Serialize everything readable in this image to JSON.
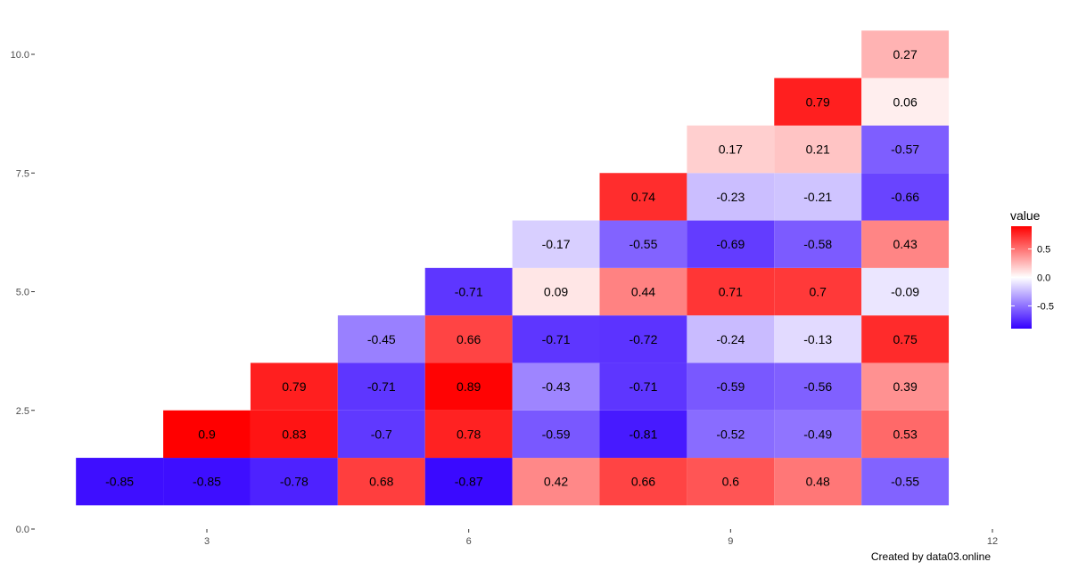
{
  "chart_data": {
    "type": "heatmap",
    "title": "",
    "xlabel": "",
    "ylabel": "",
    "x_ticks": [
      3,
      6,
      9,
      12
    ],
    "y_ticks": [
      0.0,
      2.5,
      5.0,
      7.5,
      10.0
    ],
    "y_tick_labels": [
      "0.0",
      "2.5",
      "5.0",
      "7.5",
      "10.0"
    ],
    "xlim": [
      0.5,
      12.5
    ],
    "ylim": [
      0,
      10.5
    ],
    "cells": [
      {
        "x": 2,
        "y": 1,
        "value": -0.85
      },
      {
        "x": 3,
        "y": 1,
        "value": -0.85
      },
      {
        "x": 4,
        "y": 1,
        "value": -0.78
      },
      {
        "x": 5,
        "y": 1,
        "value": 0.68
      },
      {
        "x": 6,
        "y": 1,
        "value": -0.87
      },
      {
        "x": 7,
        "y": 1,
        "value": 0.42
      },
      {
        "x": 8,
        "y": 1,
        "value": 0.66
      },
      {
        "x": 9,
        "y": 1,
        "value": 0.6
      },
      {
        "x": 10,
        "y": 1,
        "value": 0.48
      },
      {
        "x": 11,
        "y": 1,
        "value": -0.55
      },
      {
        "x": 3,
        "y": 2,
        "value": 0.9
      },
      {
        "x": 4,
        "y": 2,
        "value": 0.83
      },
      {
        "x": 5,
        "y": 2,
        "value": -0.7
      },
      {
        "x": 6,
        "y": 2,
        "value": 0.78
      },
      {
        "x": 7,
        "y": 2,
        "value": -0.59
      },
      {
        "x": 8,
        "y": 2,
        "value": -0.81
      },
      {
        "x": 9,
        "y": 2,
        "value": -0.52
      },
      {
        "x": 10,
        "y": 2,
        "value": -0.49
      },
      {
        "x": 11,
        "y": 2,
        "value": 0.53
      },
      {
        "x": 4,
        "y": 3,
        "value": 0.79
      },
      {
        "x": 5,
        "y": 3,
        "value": -0.71
      },
      {
        "x": 6,
        "y": 3,
        "value": 0.89
      },
      {
        "x": 7,
        "y": 3,
        "value": -0.43
      },
      {
        "x": 8,
        "y": 3,
        "value": -0.71
      },
      {
        "x": 9,
        "y": 3,
        "value": -0.59
      },
      {
        "x": 10,
        "y": 3,
        "value": -0.56
      },
      {
        "x": 11,
        "y": 3,
        "value": 0.39
      },
      {
        "x": 5,
        "y": 4,
        "value": -0.45
      },
      {
        "x": 6,
        "y": 4,
        "value": 0.66
      },
      {
        "x": 7,
        "y": 4,
        "value": -0.71
      },
      {
        "x": 8,
        "y": 4,
        "value": -0.72
      },
      {
        "x": 9,
        "y": 4,
        "value": -0.24
      },
      {
        "x": 10,
        "y": 4,
        "value": -0.13
      },
      {
        "x": 11,
        "y": 4,
        "value": 0.75
      },
      {
        "x": 6,
        "y": 5,
        "value": -0.71
      },
      {
        "x": 7,
        "y": 5,
        "value": 0.09
      },
      {
        "x": 8,
        "y": 5,
        "value": 0.44
      },
      {
        "x": 9,
        "y": 5,
        "value": 0.71
      },
      {
        "x": 10,
        "y": 5,
        "value": 0.7
      },
      {
        "x": 11,
        "y": 5,
        "value": -0.09
      },
      {
        "x": 7,
        "y": 6,
        "value": -0.17
      },
      {
        "x": 8,
        "y": 6,
        "value": -0.55
      },
      {
        "x": 9,
        "y": 6,
        "value": -0.69
      },
      {
        "x": 10,
        "y": 6,
        "value": -0.58
      },
      {
        "x": 11,
        "y": 6,
        "value": 0.43
      },
      {
        "x": 8,
        "y": 7,
        "value": 0.74
      },
      {
        "x": 9,
        "y": 7,
        "value": -0.23
      },
      {
        "x": 10,
        "y": 7,
        "value": -0.21
      },
      {
        "x": 11,
        "y": 7,
        "value": -0.66
      },
      {
        "x": 9,
        "y": 8,
        "value": 0.17
      },
      {
        "x": 10,
        "y": 8,
        "value": 0.21
      },
      {
        "x": 11,
        "y": 8,
        "value": -0.57
      },
      {
        "x": 10,
        "y": 9,
        "value": 0.79
      },
      {
        "x": 11,
        "y": 9,
        "value": 0.06
      },
      {
        "x": 11,
        "y": 10,
        "value": 0.27
      }
    ],
    "legend": {
      "title": "value",
      "placement": "right",
      "ticks": [
        -0.5,
        0.0,
        0.5
      ],
      "tick_labels": [
        "-0.5",
        "0.0",
        "0.5"
      ],
      "range": [
        -0.9,
        0.9
      ]
    },
    "colors": {
      "low": "#3300ff",
      "mid": "#ffffff",
      "high": "#ff0000"
    },
    "grid": false
  },
  "caption": "Created by data03.online"
}
